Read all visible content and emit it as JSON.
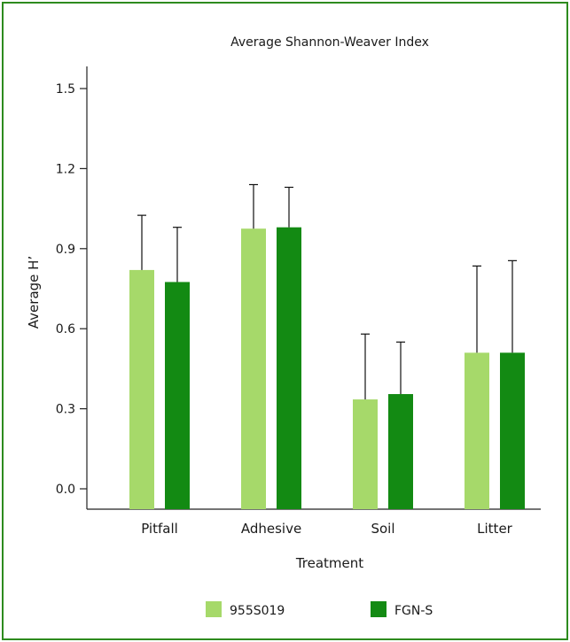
{
  "chart_data": {
    "type": "bar",
    "title": "Average Shannon-Weaver Index",
    "xlabel": "Treatment",
    "ylabel": "Average H’",
    "categories": [
      "Pitfall",
      "Adhesive",
      "Soil",
      "Litter"
    ],
    "series": [
      {
        "name": "955S019",
        "color": "#a6d96a",
        "values": [
          0.82,
          0.975,
          0.335,
          0.51
        ],
        "error_upper": [
          0.205,
          0.165,
          0.245,
          0.325
        ]
      },
      {
        "name": "FGN-S",
        "color": "#138a13",
        "values": [
          0.775,
          0.98,
          0.355,
          0.51
        ],
        "error_upper": [
          0.205,
          0.15,
          0.195,
          0.345
        ]
      }
    ],
    "ylim": [
      0,
      1.5
    ],
    "yticks": [
      "0.0",
      "0.3",
      "0.6",
      "0.9",
      "1.2",
      "1.5"
    ],
    "error_bars": true,
    "grid": false,
    "legend_position": "bottom"
  }
}
